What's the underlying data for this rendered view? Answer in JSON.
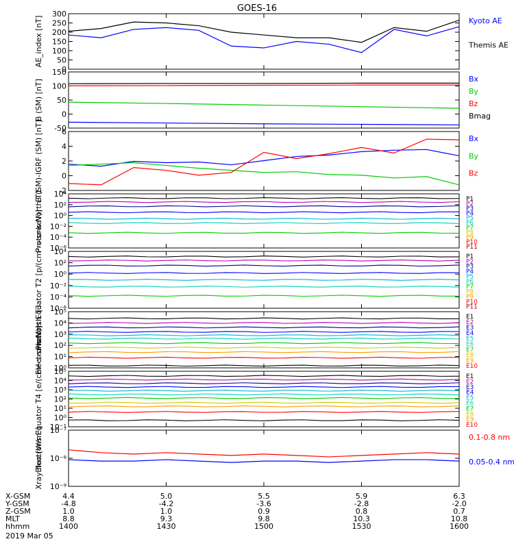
{
  "title": "GOES-16",
  "colors": {
    "black": "#000000",
    "blue": "#0000ff",
    "red": "#ff0000",
    "green": "#00cc00",
    "yellow": "#cccc00",
    "cyan": "#00b4d2",
    "purple": "#8a2be2",
    "magenta": "#b400b4",
    "darkred": "#b40000",
    "orange": "#ff9900",
    "teal": "#00d2b4",
    "navy": "#000090"
  },
  "orbit_table": {
    "row_labels": [
      "X-GSM",
      "Y-GSM",
      "Z-GSM",
      "MLT",
      "hhmm"
    ],
    "date": "2019 Mar 05",
    "columns": [
      [
        "4.4",
        "-4.8",
        "1.0",
        "8.8",
        "1400"
      ],
      [
        "5.0",
        "-4.2",
        "1.0",
        "9.3",
        "1430"
      ],
      [
        "5.5",
        "-3.6",
        "0.9",
        "9.8",
        "1500"
      ],
      [
        "5.9",
        "-2.8",
        "0.8",
        "10.3",
        "1530"
      ],
      [
        "6.3",
        "-2.0",
        "0.7",
        "10.8",
        "1600"
      ]
    ]
  },
  "chart_data": [
    {
      "type": "line",
      "ylabel": "AE_index [nT]",
      "ylim": [
        0,
        300
      ],
      "yticks": [
        "0",
        "50",
        "100",
        "150",
        "200",
        "250",
        "300"
      ],
      "x": [
        "1400",
        "1410",
        "1420",
        "1430",
        "1440",
        "1450",
        "1500",
        "1510",
        "1520",
        "1530",
        "1540",
        "1550",
        "1600"
      ],
      "series": [
        {
          "name": "Kyoto AE",
          "color": "blue",
          "values": [
            185,
            170,
            215,
            225,
            210,
            125,
            115,
            150,
            135,
            90,
            215,
            180,
            230
          ]
        },
        {
          "name": "Themis AE",
          "color": "black",
          "values": [
            205,
            220,
            255,
            250,
            235,
            200,
            185,
            170,
            170,
            145,
            225,
            205,
            265
          ]
        }
      ]
    },
    {
      "type": "line",
      "ylabel": "B (SM) [nT]",
      "ylim": [
        -60,
        150
      ],
      "yticks": [
        "-50",
        "0",
        "50",
        "100",
        "150"
      ],
      "x": [
        "1400",
        "1430",
        "1500",
        "1530",
        "1600"
      ],
      "series": [
        {
          "name": "Bx",
          "color": "blue",
          "values": [
            -38,
            -41,
            -44,
            -46,
            -48
          ]
        },
        {
          "name": "By",
          "color": "green",
          "values": [
            37,
            32,
            26,
            20,
            14
          ]
        },
        {
          "name": "Bz",
          "color": "red",
          "values": [
            98,
            99,
            100,
            101,
            101
          ]
        },
        {
          "name": "Bmag",
          "color": "black",
          "values": [
            106,
            107,
            107,
            108,
            108
          ]
        }
      ]
    },
    {
      "type": "line",
      "ylabel": "B (SM)-IGRF (SM) [nT]",
      "ylim": [
        -2,
        6.5
      ],
      "yticks": [
        "-2",
        "0",
        "2",
        "4",
        "6"
      ],
      "x": [
        "1400",
        "1410",
        "1420",
        "1430",
        "1440",
        "1450",
        "1500",
        "1510",
        "1520",
        "1530",
        "1540",
        "1550",
        "1600"
      ],
      "series": [
        {
          "name": "Bx",
          "color": "blue",
          "values": [
            1.8,
            1.5,
            2.2,
            2.0,
            2.1,
            1.7,
            2.3,
            2.9,
            3.1,
            3.6,
            3.8,
            3.9,
            3.0
          ]
        },
        {
          "name": "By",
          "color": "green",
          "values": [
            1.6,
            1.8,
            2.0,
            1.6,
            1.2,
            0.9,
            0.6,
            0.7,
            0.3,
            0.2,
            -0.2,
            0.0,
            -1.2
          ]
        },
        {
          "name": "Bz",
          "color": "red",
          "values": [
            -1.0,
            -1.2,
            1.3,
            0.9,
            0.2,
            0.6,
            3.5,
            2.6,
            3.3,
            4.2,
            3.4,
            5.4,
            5.3
          ]
        }
      ]
    },
    {
      "type": "line",
      "ylabel": "Protons North T1",
      "ylog": true,
      "ylim": [
        -6,
        4
      ],
      "yticks": [
        "10⁻⁶",
        "10⁻⁴",
        "10⁻²",
        "10⁰",
        "10²",
        "10⁴"
      ],
      "legend": [
        "P1",
        "P2",
        "P3",
        "P4",
        "P5",
        "P6",
        "P7",
        "P8",
        "P9",
        "P10",
        "P11"
      ],
      "legend_colors": [
        "black",
        "magenta",
        "navy",
        "blue",
        "cyan",
        "teal",
        "green",
        "yellow",
        "orange",
        "red",
        "darkred"
      ],
      "series_log": [
        3.2,
        2.5,
        1.7,
        0.6,
        -0.6,
        -1.4,
        -3.2
      ]
    },
    {
      "type": "line",
      "ylabel": "Protons Equator T2 [p/(cm²-s-sr-keV)]",
      "ylog": true,
      "ylim": [
        -6,
        4
      ],
      "yticks": [
        "10⁻⁶",
        "10⁻⁴",
        "10⁻²",
        "10⁰",
        "10²",
        "10⁴"
      ],
      "legend": [
        "P1",
        "P2",
        "P3",
        "P4",
        "P5",
        "P6",
        "P7",
        "P8",
        "P9",
        "P10",
        "P11"
      ],
      "legend_colors": [
        "black",
        "magenta",
        "navy",
        "blue",
        "cyan",
        "teal",
        "green",
        "yellow",
        "orange",
        "red",
        "darkred"
      ],
      "series_log": [
        3.1,
        2.4,
        1.5,
        0.2,
        -1.0,
        -2.2,
        -3.8
      ]
    },
    {
      "type": "line",
      "ylabel": "Electrons North T3",
      "ylog": true,
      "ylim": [
        0,
        5
      ],
      "yticks": [
        "10⁰",
        "10¹",
        "10²",
        "10³",
        "10⁴",
        "10⁵"
      ],
      "legend": [
        "E1",
        "E2",
        "E3",
        "E4",
        "E5",
        "E6",
        "E7",
        "E8",
        "E9",
        "E10"
      ],
      "legend_colors": [
        "black",
        "magenta",
        "navy",
        "blue",
        "cyan",
        "teal",
        "green",
        "yellow",
        "orange",
        "red"
      ],
      "series_log": [
        4.4,
        4.0,
        3.6,
        3.2,
        2.9,
        2.6,
        2.2,
        1.8,
        1.4,
        0.9,
        0.2
      ]
    },
    {
      "type": "line",
      "ylabel": "Electrons Equator T4 [e/(cm²-s-sr-keV)]",
      "ylog": true,
      "ylim": [
        -1,
        5
      ],
      "yticks": [
        "10⁻¹",
        "10⁰",
        "10¹",
        "10²",
        "10³",
        "10⁴",
        "10⁵"
      ],
      "legend": [
        "E1",
        "E2",
        "E3",
        "E4",
        "E5",
        "E6",
        "E7",
        "E8",
        "E9",
        "E10"
      ],
      "legend_colors": [
        "black",
        "magenta",
        "navy",
        "blue",
        "cyan",
        "teal",
        "green",
        "yellow",
        "orange",
        "red"
      ],
      "series_log": [
        4.5,
        4.1,
        3.7,
        3.3,
        2.9,
        2.5,
        2.1,
        1.6,
        1.2,
        0.6,
        -0.3
      ]
    },
    {
      "type": "line",
      "ylabel": "Xray flux [W/m²]",
      "ylog": true,
      "ylim": [
        -9,
        -7
      ],
      "yticks": [
        "10⁻⁹",
        "10⁻⁸",
        "10⁻⁷"
      ],
      "x": [
        "1400",
        "1410",
        "1420",
        "1430",
        "1440",
        "1450",
        "1500",
        "1510",
        "1520",
        "1530",
        "1540",
        "1550",
        "1600"
      ],
      "series": [
        {
          "name": "0.1-0.8 nm",
          "color": "red",
          "values": [
            -7.7,
            -7.8,
            -7.85,
            -7.8,
            -7.85,
            -7.9,
            -7.85,
            -7.9,
            -7.95,
            -7.9,
            -7.85,
            -7.8,
            -7.85
          ]
        },
        {
          "name": "0.05-0.4 nm",
          "color": "blue",
          "values": [
            -8.05,
            -8.1,
            -8.1,
            -8.05,
            -8.1,
            -8.15,
            -8.1,
            -8.1,
            -8.15,
            -8.1,
            -8.05,
            -8.05,
            -8.1
          ]
        }
      ]
    }
  ]
}
